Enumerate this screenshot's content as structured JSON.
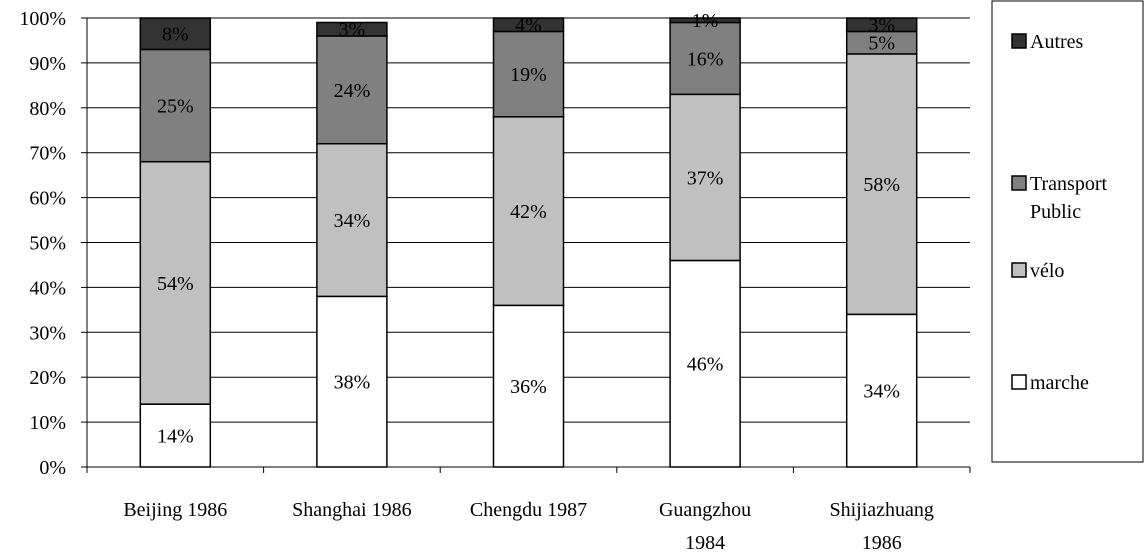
{
  "chart_data": {
    "type": "bar",
    "stacked": true,
    "title": "",
    "xlabel": "",
    "ylabel": "",
    "ylim": [
      0,
      100
    ],
    "y_ticks": [
      "0%",
      "10%",
      "20%",
      "30%",
      "40%",
      "50%",
      "60%",
      "70%",
      "80%",
      "90%",
      "100%"
    ],
    "grid": true,
    "legend_position": "right",
    "categories": [
      [
        "Beijing 1986"
      ],
      [
        "Shanghai 1986"
      ],
      [
        "Chengdu 1987"
      ],
      [
        "Guangzhou",
        "1984"
      ],
      [
        "Shijiazhuang",
        "1986"
      ]
    ],
    "series": [
      {
        "name": "marche",
        "legend_lines": [
          "marche"
        ],
        "color": "#ffffff",
        "values": [
          14,
          38,
          36,
          46,
          34
        ],
        "labels": [
          "14%",
          "38%",
          "36%",
          "46%",
          "34%"
        ]
      },
      {
        "name": "vélo",
        "legend_lines": [
          "vélo"
        ],
        "color": "#c0c0c0",
        "values": [
          54,
          34,
          42,
          37,
          58
        ],
        "labels": [
          "54%",
          "34%",
          "42%",
          "37%",
          "58%"
        ]
      },
      {
        "name": "Transport Public",
        "legend_lines": [
          "Transport",
          "Public"
        ],
        "color": "#808080",
        "values": [
          25,
          24,
          19,
          16,
          5
        ],
        "labels": [
          "25%",
          "24%",
          "19%",
          "16%",
          "5%"
        ]
      },
      {
        "name": "Autres",
        "legend_lines": [
          "Autres"
        ],
        "color": "#333333",
        "values": [
          8,
          3,
          4,
          1,
          3
        ],
        "labels": [
          "8%",
          "3%",
          "4%",
          "1%",
          "3%"
        ]
      }
    ]
  }
}
